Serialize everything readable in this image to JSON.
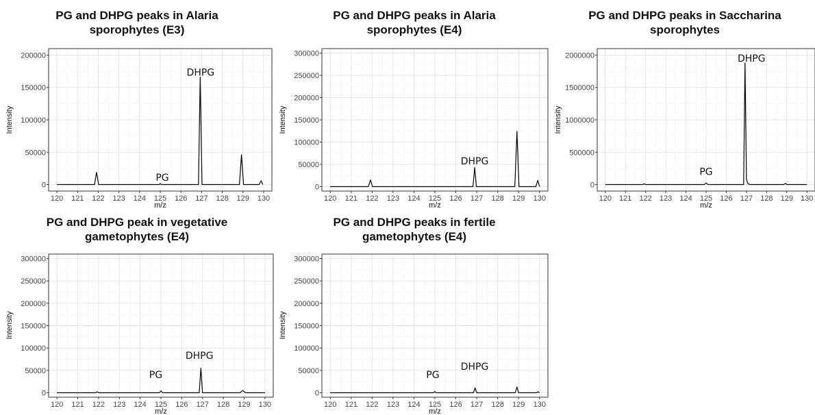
{
  "chart_data": [
    {
      "type": "line",
      "title_line1": "PG and DHPG peaks in Alaria",
      "title_line2": "sporophytes (E3)",
      "xlabel": "m/z",
      "ylabel": "Intensity",
      "xlim": [
        119.6,
        130.4
      ],
      "ylim": [
        -10000,
        210000
      ],
      "xticks": [
        "120",
        "121",
        "122",
        "123",
        "124",
        "125",
        "126",
        "127",
        "128",
        "129",
        "130"
      ],
      "yticks": [
        "0",
        "50000",
        "100000",
        "150000",
        "200000"
      ],
      "series": [
        {
          "x": [
            120,
            121.82,
            121.92,
            122.02,
            124.95,
            125.0,
            125.05,
            126.85,
            126.93,
            127.02,
            128.83,
            128.93,
            129.03,
            129.78,
            129.88,
            129.96
          ],
          "y": [
            0,
            0,
            19000,
            0,
            0,
            1500,
            0,
            0,
            166000,
            0,
            0,
            46000,
            0,
            0,
            6000,
            0
          ]
        }
      ],
      "annotations": [
        {
          "text": "DHPG",
          "x": 126.95,
          "y": 168000
        },
        {
          "text": "PG",
          "x": 125.1,
          "y": 6000
        }
      ]
    },
    {
      "type": "line",
      "title_line1": "PG and DHPG peaks in Alaria",
      "title_line2": "sporophytes (E4)",
      "xlabel": "m/z",
      "ylabel": "Intensity",
      "xlim": [
        119.6,
        130.4
      ],
      "ylim": [
        -10000,
        310000
      ],
      "xticks": [
        "120",
        "121",
        "122",
        "123",
        "124",
        "125",
        "126",
        "127",
        "128",
        "129",
        "130"
      ],
      "yticks": [
        "0",
        "50000",
        "100000",
        "150000",
        "200000",
        "250000",
        "300000"
      ],
      "series": [
        {
          "x": [
            120,
            121.82,
            121.92,
            122.02,
            126.82,
            126.9,
            126.98,
            128.82,
            128.92,
            129.02,
            129.82,
            129.92,
            130.0
          ],
          "y": [
            0,
            0,
            15000,
            0,
            0,
            43000,
            0,
            0,
            124000,
            0,
            0,
            14000,
            0
          ]
        }
      ],
      "annotations": [
        {
          "text": "DHPG",
          "x": 126.9,
          "y": 50000
        }
      ]
    },
    {
      "type": "line",
      "title_line1": "PG and DHPG peaks in Saccharina",
      "title_line2": "sporophytes",
      "xlabel": "m/z",
      "ylabel": "Intensity",
      "xlim": [
        119.6,
        130.4
      ],
      "ylim": [
        -100000,
        2100000
      ],
      "xticks": [
        "120",
        "121",
        "122",
        "123",
        "124",
        "125",
        "126",
        "127",
        "128",
        "129",
        "130"
      ],
      "yticks": [
        "0",
        "500000",
        "1000000",
        "1500000",
        "2000000"
      ],
      "series": [
        {
          "x": [
            120,
            121.85,
            121.93,
            122.01,
            124.9,
            125.0,
            125.1,
            126.86,
            126.93,
            127.0,
            127.08,
            127.2,
            128.85,
            128.93,
            129.01,
            130.0
          ],
          "y": [
            0,
            0,
            12000,
            0,
            0,
            25000,
            0,
            0,
            1880000,
            80000,
            12000,
            0,
            0,
            18000,
            0,
            0
          ]
        }
      ],
      "annotations": [
        {
          "text": "DHPG",
          "x": 127.25,
          "y": 1900000
        },
        {
          "text": "PG",
          "x": 125.0,
          "y": 150000
        }
      ]
    },
    {
      "type": "line",
      "title_line1": "PG and DHPG peak in vegetative",
      "title_line2": "gametophytes (E4)",
      "xlabel": "m/z",
      "ylabel": "Intensity",
      "xlim": [
        119.6,
        130.4
      ],
      "ylim": [
        -10000,
        310000
      ],
      "xticks": [
        "120",
        "121",
        "122",
        "123",
        "124",
        "125",
        "126",
        "127",
        "128",
        "129",
        "130"
      ],
      "yticks": [
        "0",
        "50000",
        "100000",
        "150000",
        "200000",
        "250000",
        "300000"
      ],
      "series": [
        {
          "x": [
            120,
            121.85,
            121.93,
            122.01,
            124.92,
            125.0,
            125.08,
            126.84,
            126.92,
            127.0,
            128.8,
            128.93,
            129.06,
            130.0
          ],
          "y": [
            0,
            0,
            2000,
            0,
            0,
            4000,
            0,
            0,
            55000,
            0,
            0,
            5000,
            0,
            0
          ]
        }
      ],
      "annotations": [
        {
          "text": "DHPG",
          "x": 126.85,
          "y": 76000
        },
        {
          "text": "PG",
          "x": 124.75,
          "y": 33000
        }
      ]
    },
    {
      "type": "line",
      "title_line1": "PG and DHPG peaks in fertile",
      "title_line2": "gametophytes (E4)",
      "xlabel": "m/z",
      "ylabel": "Intensity",
      "xlim": [
        119.6,
        130.4
      ],
      "ylim": [
        -10000,
        310000
      ],
      "xticks": [
        "120",
        "121",
        "122",
        "123",
        "124",
        "125",
        "126",
        "127",
        "128",
        "129",
        "130"
      ],
      "yticks": [
        "0",
        "50000",
        "100000",
        "150000",
        "200000",
        "250000",
        "300000"
      ],
      "series": [
        {
          "x": [
            120,
            124.93,
            125.0,
            125.07,
            126.84,
            126.92,
            127.0,
            128.84,
            128.92,
            129.0,
            129.85,
            129.92,
            130.0
          ],
          "y": [
            0,
            0,
            2500,
            0,
            0,
            11000,
            0,
            0,
            13000,
            0,
            0,
            2000,
            0
          ]
        }
      ],
      "annotations": [
        {
          "text": "DHPG",
          "x": 126.9,
          "y": 51000
        },
        {
          "text": "PG",
          "x": 124.9,
          "y": 33000
        }
      ]
    }
  ]
}
